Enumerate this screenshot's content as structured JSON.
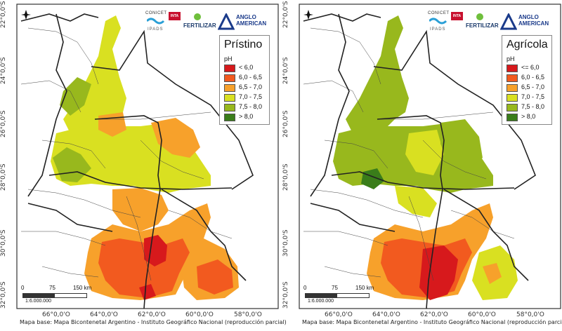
{
  "credit": "Mapa base: Mapa Bicontenetal Argentino - Instituto Geográfico Nacional (reproducción parcial)",
  "lat_labels": [
    "22°0,0'S",
    "24°0,0'S",
    "26°0,0'S",
    "28°0,0'S",
    "30°0,0'S",
    "32°0,0'S"
  ],
  "lon_labels": [
    "66°0,0'O",
    "64°0,0'O",
    "62°0,0'O",
    "60°0,0'O",
    "58°0,0'O"
  ],
  "logos": {
    "conicet": "CONICET",
    "ipads": "IPADS",
    "inta": "INTA",
    "fertilizar": "FERTILIZAR",
    "anglo": "ANGLO AMERICAN"
  },
  "scale": {
    "zero": "0",
    "mid": "75",
    "max": "150 km",
    "ratio": "1:6.000.000"
  },
  "colors": {
    "ph_lt6": "#d7191c",
    "ph_6_65": "#f25a1f",
    "ph_65_7": "#f7a12b",
    "ph_7_75": "#d9e021",
    "ph_75_8": "#98b81d",
    "ph_gt8": "#3a7d1a",
    "base": "#ffffff",
    "border": "#333333"
  },
  "maps": [
    {
      "title": "Prístino",
      "unit": "pH",
      "legend": [
        "< 6,0",
        "6,0 - 6,5",
        "6,5 - 7,0",
        "7,0 - 7,5",
        "7,5 - 8,0",
        "> 8,0"
      ]
    },
    {
      "title": "Agrícola",
      "unit": "pH",
      "legend": [
        "<= 6,0",
        "6,0 - 6,5",
        "6,5 - 7,0",
        "7,0 - 7,5",
        "7,5 - 8,0",
        "> 8,0"
      ]
    }
  ]
}
